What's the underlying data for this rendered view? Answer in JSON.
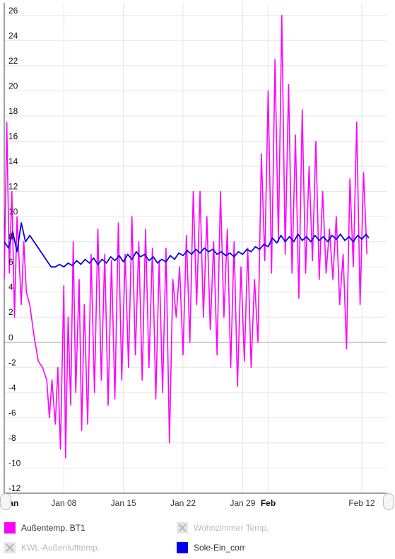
{
  "chart_data": {
    "type": "line",
    "ylim": [
      -12,
      27
    ],
    "yticks": [
      26,
      24,
      22,
      20,
      18,
      16,
      14,
      12,
      10,
      8,
      6,
      4,
      2,
      0,
      -2,
      -4,
      -6,
      -8,
      -10,
      -12
    ],
    "xlim": [
      "Jan 01",
      "Feb 15"
    ],
    "xtick_labels": [
      "Jan",
      "Jan 08",
      "Jan 15",
      "Jan 22",
      "Jan 29",
      "Feb",
      "Feb 12"
    ],
    "xtick_days": [
      0,
      7,
      14,
      21,
      28,
      31,
      42
    ],
    "grid": true,
    "series": [
      {
        "name": "Außentemp. BT1",
        "color": "#ff00ff",
        "visible": true,
        "points": [
          [
            0.0,
            5.0
          ],
          [
            0.3,
            17.5
          ],
          [
            0.6,
            5.5
          ],
          [
            0.9,
            12.0
          ],
          [
            1.2,
            2.0
          ],
          [
            1.5,
            10.0
          ],
          [
            2.0,
            3.0
          ],
          [
            2.3,
            8.0
          ],
          [
            2.6,
            4.0
          ],
          [
            3.0,
            3.0
          ],
          [
            3.5,
            0.5
          ],
          [
            4.0,
            -1.5
          ],
          [
            4.5,
            -2.0
          ],
          [
            5.0,
            -3.0
          ],
          [
            5.3,
            -6.0
          ],
          [
            5.6,
            -3.0
          ],
          [
            6.0,
            -6.5
          ],
          [
            6.3,
            -2.0
          ],
          [
            6.6,
            -8.5
          ],
          [
            7.0,
            4.5
          ],
          [
            7.2,
            -9.2
          ],
          [
            7.5,
            2.0
          ],
          [
            7.8,
            -5.0
          ],
          [
            8.1,
            8.0
          ],
          [
            8.4,
            -4.0
          ],
          [
            8.8,
            5.0
          ],
          [
            9.1,
            -7.0
          ],
          [
            9.4,
            3.0
          ],
          [
            9.8,
            -6.5
          ],
          [
            10.2,
            7.0
          ],
          [
            10.6,
            -4.0
          ],
          [
            11.0,
            9.0
          ],
          [
            11.4,
            -3.0
          ],
          [
            11.8,
            7.0
          ],
          [
            12.2,
            -5.0
          ],
          [
            12.6,
            6.5
          ],
          [
            13.0,
            -4.5
          ],
          [
            13.4,
            9.5
          ],
          [
            13.8,
            -3.0
          ],
          [
            14.2,
            7.0
          ],
          [
            14.6,
            -2.0
          ],
          [
            15.0,
            10.0
          ],
          [
            15.4,
            -1.0
          ],
          [
            15.8,
            8.0
          ],
          [
            16.2,
            -3.0
          ],
          [
            16.6,
            9.0
          ],
          [
            17.0,
            -2.0
          ],
          [
            17.4,
            7.5
          ],
          [
            17.8,
            -4.5
          ],
          [
            18.2,
            6.5
          ],
          [
            18.6,
            -4.0
          ],
          [
            19.0,
            7.5
          ],
          [
            19.4,
            -8.0
          ],
          [
            19.8,
            5.0
          ],
          [
            20.2,
            2.0
          ],
          [
            20.6,
            6.0
          ],
          [
            21.0,
            -1.0
          ],
          [
            21.4,
            8.5
          ],
          [
            21.8,
            0.0
          ],
          [
            22.2,
            12.0
          ],
          [
            22.6,
            3.0
          ],
          [
            23.0,
            12.0
          ],
          [
            23.4,
            2.0
          ],
          [
            23.8,
            10.0
          ],
          [
            24.2,
            1.0
          ],
          [
            24.6,
            8.0
          ],
          [
            25.0,
            -1.0
          ],
          [
            25.4,
            12.0
          ],
          [
            25.8,
            2.0
          ],
          [
            26.2,
            9.0
          ],
          [
            26.6,
            -2.0
          ],
          [
            27.0,
            8.0
          ],
          [
            27.4,
            -3.5
          ],
          [
            27.8,
            6.0
          ],
          [
            28.2,
            -1.5
          ],
          [
            28.6,
            7.5
          ],
          [
            29.0,
            -2.0
          ],
          [
            29.4,
            5.0
          ],
          [
            29.8,
            0.0
          ],
          [
            30.2,
            15.0
          ],
          [
            30.6,
            6.5
          ],
          [
            31.0,
            20.0
          ],
          [
            31.4,
            5.5
          ],
          [
            31.8,
            22.5
          ],
          [
            32.2,
            8.0
          ],
          [
            32.6,
            26.0
          ],
          [
            33.0,
            7.0
          ],
          [
            33.4,
            20.5
          ],
          [
            33.8,
            5.5
          ],
          [
            34.2,
            16.5
          ],
          [
            34.6,
            3.5
          ],
          [
            35.0,
            18.5
          ],
          [
            35.4,
            5.5
          ],
          [
            35.8,
            14.0
          ],
          [
            36.2,
            6.5
          ],
          [
            36.6,
            16.0
          ],
          [
            37.0,
            5.0
          ],
          [
            37.4,
            12.0
          ],
          [
            37.8,
            5.5
          ],
          [
            38.2,
            9.0
          ],
          [
            38.6,
            5.0
          ],
          [
            39.0,
            10.0
          ],
          [
            39.4,
            3.0
          ],
          [
            39.8,
            7.0
          ],
          [
            40.2,
            -0.5
          ],
          [
            40.6,
            13.0
          ],
          [
            41.0,
            6.0
          ],
          [
            41.4,
            17.5
          ],
          [
            41.8,
            3.0
          ],
          [
            42.2,
            13.5
          ],
          [
            42.6,
            7.0
          ]
        ]
      },
      {
        "name": "Wohnzimmer Temp.",
        "color": "#cccccc",
        "visible": false,
        "points": []
      },
      {
        "name": "KWL-Außenlufttemp.",
        "color": "#cccccc",
        "visible": false,
        "points": []
      },
      {
        "name": "Sole-Ein_corr",
        "color": "#0000ee",
        "visible": true,
        "points": [
          [
            0.0,
            8.0
          ],
          [
            0.5,
            7.5
          ],
          [
            1.0,
            8.8
          ],
          [
            1.5,
            7.2
          ],
          [
            2.0,
            9.5
          ],
          [
            2.5,
            8.0
          ],
          [
            3.0,
            8.5
          ],
          [
            3.5,
            8.0
          ],
          [
            4.0,
            7.5
          ],
          [
            4.5,
            7.0
          ],
          [
            5.0,
            6.5
          ],
          [
            5.5,
            6.0
          ],
          [
            6.0,
            6.0
          ],
          [
            6.5,
            6.2
          ],
          [
            7.0,
            6.0
          ],
          [
            7.5,
            6.3
          ],
          [
            8.0,
            6.1
          ],
          [
            8.5,
            6.5
          ],
          [
            9.0,
            6.2
          ],
          [
            9.5,
            6.6
          ],
          [
            10.0,
            6.3
          ],
          [
            10.5,
            6.7
          ],
          [
            11.0,
            6.2
          ],
          [
            11.5,
            6.6
          ],
          [
            12.0,
            6.3
          ],
          [
            12.5,
            6.8
          ],
          [
            13.0,
            6.5
          ],
          [
            13.5,
            6.9
          ],
          [
            14.0,
            6.4
          ],
          [
            14.5,
            7.0
          ],
          [
            15.0,
            6.6
          ],
          [
            15.5,
            7.2
          ],
          [
            16.0,
            6.8
          ],
          [
            16.5,
            7.0
          ],
          [
            17.0,
            6.5
          ],
          [
            17.5,
            6.8
          ],
          [
            18.0,
            6.3
          ],
          [
            18.5,
            6.6
          ],
          [
            19.0,
            6.4
          ],
          [
            19.5,
            6.9
          ],
          [
            20.0,
            6.6
          ],
          [
            20.5,
            7.1
          ],
          [
            21.0,
            6.9
          ],
          [
            21.5,
            7.3
          ],
          [
            22.0,
            7.0
          ],
          [
            22.5,
            7.4
          ],
          [
            23.0,
            7.1
          ],
          [
            23.5,
            7.5
          ],
          [
            24.0,
            7.2
          ],
          [
            24.5,
            7.4
          ],
          [
            25.0,
            7.0
          ],
          [
            25.5,
            7.2
          ],
          [
            26.0,
            6.9
          ],
          [
            26.5,
            7.1
          ],
          [
            27.0,
            6.8
          ],
          [
            27.5,
            7.2
          ],
          [
            28.0,
            7.0
          ],
          [
            28.5,
            7.4
          ],
          [
            29.0,
            7.2
          ],
          [
            29.5,
            7.6
          ],
          [
            30.0,
            7.4
          ],
          [
            30.5,
            7.8
          ],
          [
            31.0,
            7.6
          ],
          [
            31.5,
            8.3
          ],
          [
            32.0,
            7.9
          ],
          [
            32.5,
            8.5
          ],
          [
            33.0,
            8.0
          ],
          [
            33.5,
            8.4
          ],
          [
            34.0,
            8.0
          ],
          [
            34.5,
            8.6
          ],
          [
            35.0,
            8.1
          ],
          [
            35.5,
            8.4
          ],
          [
            36.0,
            8.0
          ],
          [
            36.5,
            8.5
          ],
          [
            37.0,
            8.1
          ],
          [
            37.5,
            8.4
          ],
          [
            38.0,
            8.0
          ],
          [
            38.5,
            8.5
          ],
          [
            39.0,
            8.2
          ],
          [
            39.5,
            8.6
          ],
          [
            40.0,
            8.1
          ],
          [
            40.5,
            8.4
          ],
          [
            41.0,
            8.0
          ],
          [
            41.5,
            8.5
          ],
          [
            42.0,
            8.2
          ],
          [
            42.5,
            8.6
          ],
          [
            42.8,
            8.3
          ]
        ]
      }
    ]
  },
  "legend": {
    "items": [
      {
        "label": "Außentemp. BT1",
        "color": "#ff00ff",
        "visible": true
      },
      {
        "label": "Wohnzimmer Temp.",
        "color": "#cccccc",
        "visible": false
      },
      {
        "label": "KWL-Außenlufttemp.",
        "color": "#cccccc",
        "visible": false
      },
      {
        "label": "Sole-Ein_corr",
        "color": "#0000ee",
        "visible": true
      }
    ]
  }
}
